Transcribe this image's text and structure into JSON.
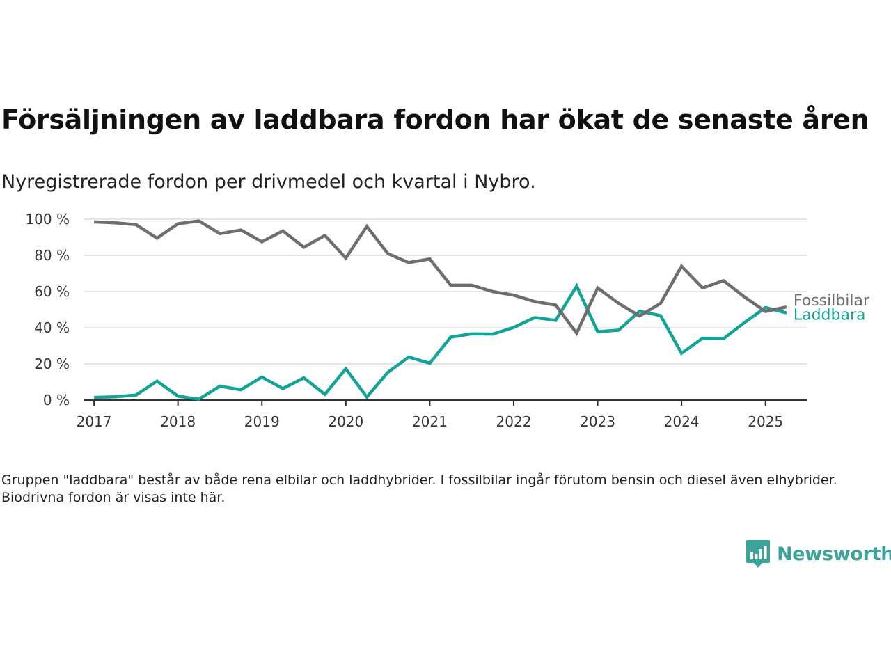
{
  "title": "Försäljningen av laddbara fordon har ökat de senaste åren",
  "subtitle": "Nyregistrerade fordon per drivmedel och kvartal i Nybro.",
  "note": "Gruppen \"laddbara\" består av både rena elbilar och laddhybrider. I fossilbilar ingår förutom bensin och diesel även elhybrider. Biodrivna fordon är visas inte här.",
  "logo": {
    "text": "Newsworthy",
    "icon": "newsworthy-logo-icon"
  },
  "colors": {
    "fossil": "#6e6e70",
    "laddbara": "#13a397",
    "grid": "#dddddd",
    "axis": "#333333",
    "logo": "#3aa39a"
  },
  "chart_data": {
    "type": "line",
    "title": "Försäljningen av laddbara fordon har ökat de senaste åren",
    "subtitle": "Nyregistrerade fordon per drivmedel och kvartal i Nybro.",
    "xlabel": "",
    "ylabel": "",
    "ylim": [
      0,
      100
    ],
    "yticks": [
      {
        "value": 0,
        "label": "0 %"
      },
      {
        "value": 20,
        "label": "20 %"
      },
      {
        "value": 40,
        "label": "40 %"
      },
      {
        "value": 60,
        "label": "60 %"
      },
      {
        "value": 80,
        "label": "80 %"
      },
      {
        "value": 100,
        "label": "100 %"
      }
    ],
    "xlim": [
      2016.875,
      2025.5
    ],
    "xticks": [
      "2017",
      "2018",
      "2019",
      "2020",
      "2021",
      "2022",
      "2023",
      "2024",
      "2025"
    ],
    "grid": true,
    "legend": "end-of-line labels",
    "x": [
      2017.0,
      2017.25,
      2017.5,
      2017.75,
      2018.0,
      2018.25,
      2018.5,
      2018.75,
      2019.0,
      2019.25,
      2019.5,
      2019.75,
      2020.0,
      2020.25,
      2020.5,
      2020.75,
      2021.0,
      2021.25,
      2021.5,
      2021.75,
      2022.0,
      2022.25,
      2022.5,
      2022.75,
      2023.0,
      2023.25,
      2023.5,
      2023.75,
      2024.0,
      2024.25,
      2024.5,
      2024.75,
      2025.0,
      2025.25
    ],
    "series": [
      {
        "name": "Fossilbilar",
        "color": "#6e6e70",
        "values": [
          98.5,
          98,
          97,
          89.5,
          97.5,
          99,
          92,
          94,
          87.5,
          93.5,
          84.5,
          91,
          78.5,
          96,
          81,
          76,
          78,
          63.5,
          63.5,
          60,
          58,
          54.5,
          52.5,
          37,
          62,
          53.5,
          46.5,
          53.5,
          74,
          62,
          66,
          57,
          49,
          51.5
        ]
      },
      {
        "name": "Laddbara",
        "color": "#13a397",
        "values": [
          1.5,
          1.8,
          2.8,
          10.5,
          2.2,
          0.5,
          7.7,
          5.7,
          12.7,
          6.4,
          12.3,
          3.2,
          17.3,
          1.7,
          15.3,
          23.8,
          20.4,
          34.8,
          36.6,
          36.5,
          40.2,
          45.6,
          44.1,
          63,
          37.8,
          38.7,
          49.1,
          46.7,
          25.9,
          34.2,
          34,
          42.9,
          51.2,
          48.2
        ]
      }
    ]
  }
}
